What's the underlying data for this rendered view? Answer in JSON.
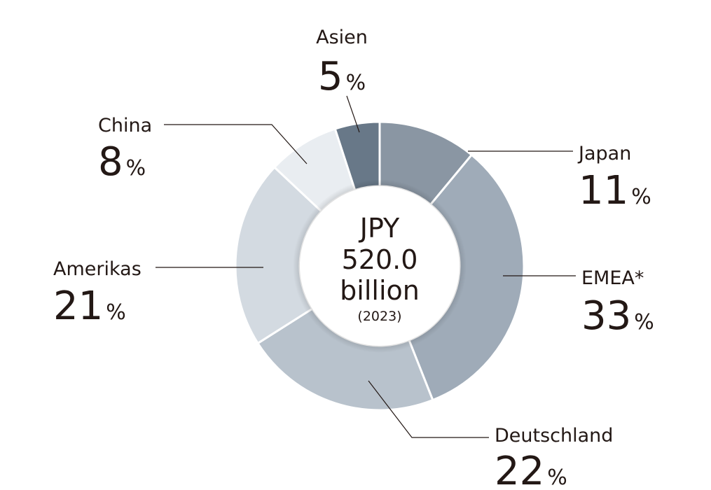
{
  "chart_data": {
    "type": "pie",
    "variant": "donut",
    "center": {
      "line1": "JPY",
      "line2": "520.0",
      "line3": "billion",
      "line4": "(2023)"
    },
    "percent_symbol": "%",
    "slices": [
      {
        "label": "Japan",
        "value": 11,
        "display": "11",
        "color": "#8a96a3"
      },
      {
        "label": "EMEA*",
        "value": 33,
        "display": "33",
        "color": "#9fabb8"
      },
      {
        "label": "Deutschland",
        "value": 22,
        "display": "22",
        "color": "#b8c2cc"
      },
      {
        "label": "Amerikas",
        "value": 21,
        "display": "21",
        "color": "#d3dae1"
      },
      {
        "label": "China",
        "value": 8,
        "display": "8",
        "color": "#e9edf1"
      },
      {
        "label": "Asien",
        "value": 5,
        "display": "5",
        "color": "#687888"
      }
    ],
    "start_angle_deg": 0,
    "direction": "clockwise",
    "legend": "none"
  }
}
